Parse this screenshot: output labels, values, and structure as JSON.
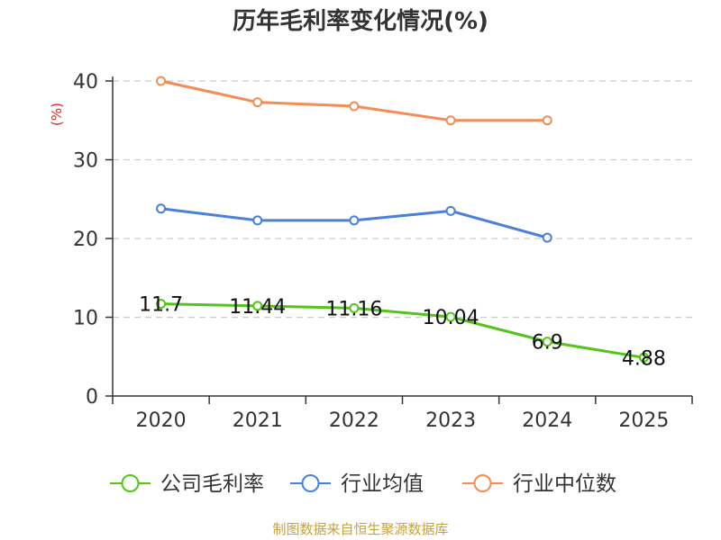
{
  "chart_data": {
    "type": "line",
    "title": "历年毛利率变化情况(%)",
    "ylabel": "(%)",
    "xlabel": "",
    "categories": [
      "2020",
      "2021",
      "2022",
      "2023",
      "2024",
      "2025"
    ],
    "ylim": [
      0,
      40
    ],
    "yticks": [
      0,
      10,
      20,
      30,
      40
    ],
    "grid": true,
    "legend_position": "bottom",
    "series": [
      {
        "name": "公司毛利率",
        "color": "#52c41a",
        "values": [
          11.7,
          11.44,
          11.16,
          10.04,
          6.9,
          4.88
        ],
        "labels": [
          "11.7",
          "11.44",
          "11.16",
          "10.04",
          "6.9",
          "4.88"
        ]
      },
      {
        "name": "行业均值",
        "color": "#4a7fdc",
        "values": [
          23.8,
          22.3,
          22.3,
          23.5,
          20.1,
          null
        ]
      },
      {
        "name": "行业中位数",
        "color": "#f58c55",
        "values": [
          40.0,
          37.3,
          36.8,
          35.0,
          35.0,
          null
        ]
      }
    ]
  },
  "source": {
    "text": "制图数据来自恒生聚源数据库",
    "color": "#c8a03c"
  },
  "colors": {
    "unit_label": "#e0261b",
    "axis": "#333333",
    "grid": "#cccccc"
  }
}
